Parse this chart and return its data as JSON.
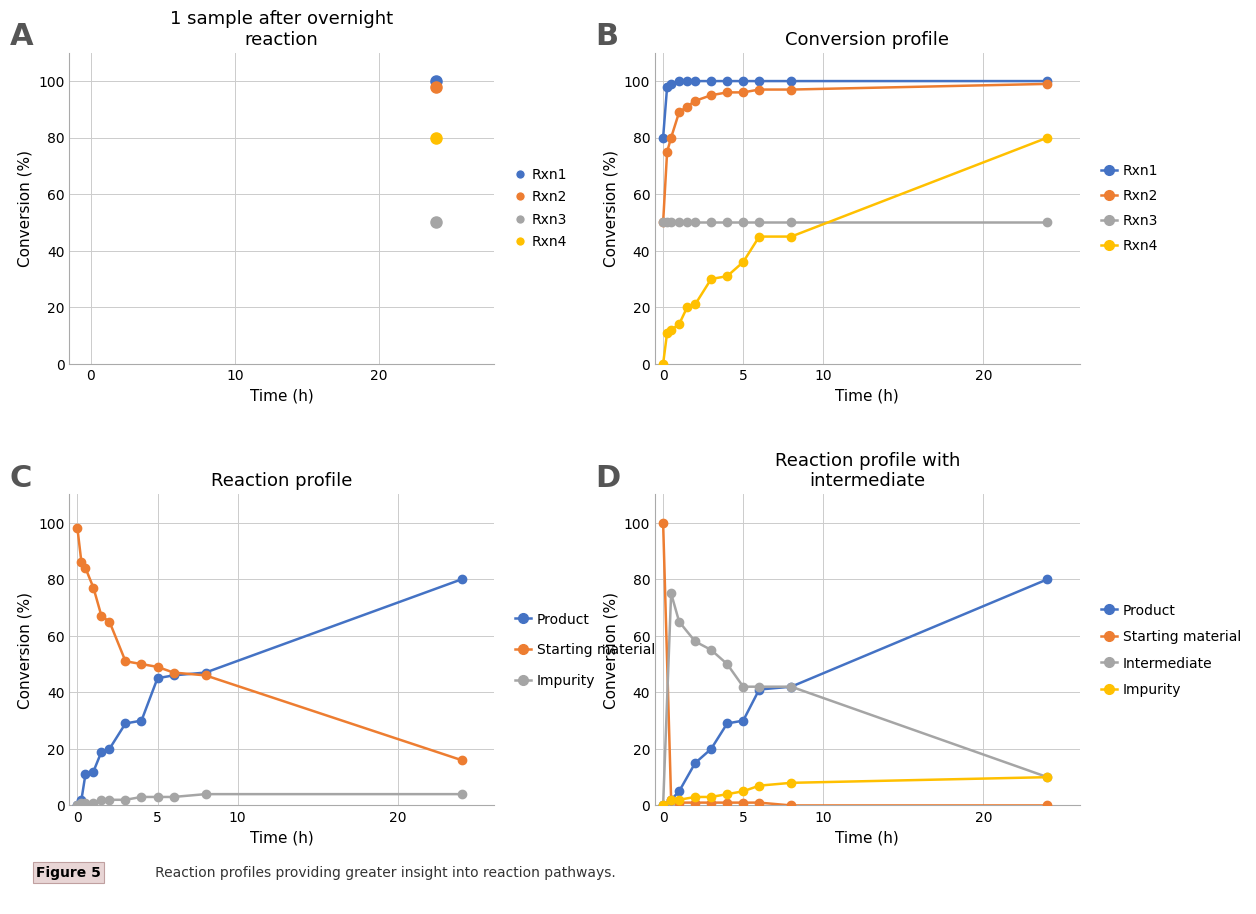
{
  "colors": {
    "blue": "#4472C4",
    "orange": "#ED7D31",
    "gray": "#A5A5A5",
    "yellow": "#FFC000"
  },
  "panel_A": {
    "title": "1 sample after overnight\nreaction",
    "xlabel": "Time (h)",
    "ylabel": "Conversion (%)",
    "xlim": [
      -1.5,
      28
    ],
    "ylim": [
      0,
      110
    ],
    "xticks": [
      0,
      10,
      20
    ],
    "yticks": [
      0,
      20,
      40,
      60,
      80,
      100
    ],
    "data": {
      "Rxn1": {
        "x": [
          24
        ],
        "y": [
          100
        ]
      },
      "Rxn2": {
        "x": [
          24
        ],
        "y": [
          98
        ]
      },
      "Rxn3": {
        "x": [
          24
        ],
        "y": [
          50
        ]
      },
      "Rxn4": {
        "x": [
          24
        ],
        "y": [
          80
        ]
      }
    }
  },
  "panel_B": {
    "title": "Conversion profile",
    "xlabel": "Time (h)",
    "ylabel": "Conversion (%)",
    "xlim": [
      -0.5,
      26
    ],
    "ylim": [
      0,
      110
    ],
    "xticks": [
      0,
      5,
      10,
      20
    ],
    "yticks": [
      0,
      20,
      40,
      60,
      80,
      100
    ],
    "data": {
      "Rxn1": {
        "x": [
          0,
          0.25,
          0.5,
          1,
          1.5,
          2,
          3,
          4,
          5,
          6,
          8,
          24
        ],
        "y": [
          80,
          98,
          99,
          100,
          100,
          100,
          100,
          100,
          100,
          100,
          100,
          100
        ]
      },
      "Rxn2": {
        "x": [
          0,
          0.25,
          0.5,
          1,
          1.5,
          2,
          3,
          4,
          5,
          6,
          8,
          24
        ],
        "y": [
          50,
          75,
          80,
          89,
          91,
          93,
          95,
          96,
          96,
          97,
          97,
          99
        ]
      },
      "Rxn3": {
        "x": [
          0,
          0.25,
          0.5,
          1,
          1.5,
          2,
          3,
          4,
          5,
          6,
          8,
          24
        ],
        "y": [
          50,
          50,
          50,
          50,
          50,
          50,
          50,
          50,
          50,
          50,
          50,
          50
        ]
      },
      "Rxn4": {
        "x": [
          0,
          0.25,
          0.5,
          1,
          1.5,
          2,
          3,
          4,
          5,
          6,
          8,
          24
        ],
        "y": [
          0,
          11,
          12,
          14,
          20,
          21,
          30,
          31,
          36,
          45,
          45,
          80
        ]
      }
    }
  },
  "panel_C": {
    "title": "Reaction profile",
    "xlabel": "Time (h)",
    "ylabel": "Conversion (%)",
    "xlim": [
      -0.5,
      26
    ],
    "ylim": [
      0,
      110
    ],
    "xticks": [
      0,
      5,
      10,
      20
    ],
    "yticks": [
      0,
      20,
      40,
      60,
      80,
      100
    ],
    "data": {
      "Product": {
        "x": [
          0,
          0.25,
          0.5,
          1,
          1.5,
          2,
          3,
          4,
          5,
          6,
          8,
          24
        ],
        "y": [
          0,
          2,
          11,
          12,
          19,
          20,
          29,
          30,
          45,
          46,
          47,
          80
        ]
      },
      "Starting material": {
        "x": [
          0,
          0.25,
          0.5,
          1,
          1.5,
          2,
          3,
          4,
          5,
          6,
          8,
          24
        ],
        "y": [
          98,
          86,
          84,
          77,
          67,
          65,
          51,
          50,
          49,
          47,
          46,
          16
        ]
      },
      "Impurity": {
        "x": [
          0,
          0.25,
          0.5,
          1,
          1.5,
          2,
          3,
          4,
          5,
          6,
          8,
          24
        ],
        "y": [
          0,
          1,
          1,
          1,
          2,
          2,
          2,
          3,
          3,
          3,
          4,
          4
        ]
      }
    }
  },
  "panel_D": {
    "title": "Reaction profile with\nintermediate",
    "xlabel": "Time (h)",
    "ylabel": "Conversion (%)",
    "xlim": [
      -0.5,
      26
    ],
    "ylim": [
      0,
      110
    ],
    "xticks": [
      0,
      5,
      10,
      20
    ],
    "yticks": [
      0,
      20,
      40,
      60,
      80,
      100
    ],
    "data": {
      "Product": {
        "x": [
          0,
          0.5,
          1,
          2,
          3,
          4,
          5,
          6,
          8,
          24
        ],
        "y": [
          0,
          2,
          5,
          15,
          20,
          29,
          30,
          41,
          42,
          80
        ]
      },
      "Starting material": {
        "x": [
          0,
          0.5,
          1,
          2,
          3,
          4,
          5,
          6,
          8,
          24
        ],
        "y": [
          100,
          2,
          1,
          1,
          1,
          1,
          1,
          1,
          0,
          0
        ]
      },
      "Intermediate": {
        "x": [
          0,
          0.5,
          1,
          2,
          3,
          4,
          5,
          6,
          8,
          24
        ],
        "y": [
          0,
          75,
          65,
          58,
          55,
          50,
          42,
          42,
          42,
          10
        ]
      },
      "Impurity": {
        "x": [
          0,
          0.5,
          1,
          2,
          3,
          4,
          5,
          6,
          8,
          24
        ],
        "y": [
          0,
          2,
          2,
          3,
          3,
          4,
          5,
          7,
          8,
          10
        ]
      }
    }
  },
  "figure_caption_bold": "Figure 5",
  "figure_caption_rest": "   Reaction profiles providing greater insight into reaction pathways."
}
